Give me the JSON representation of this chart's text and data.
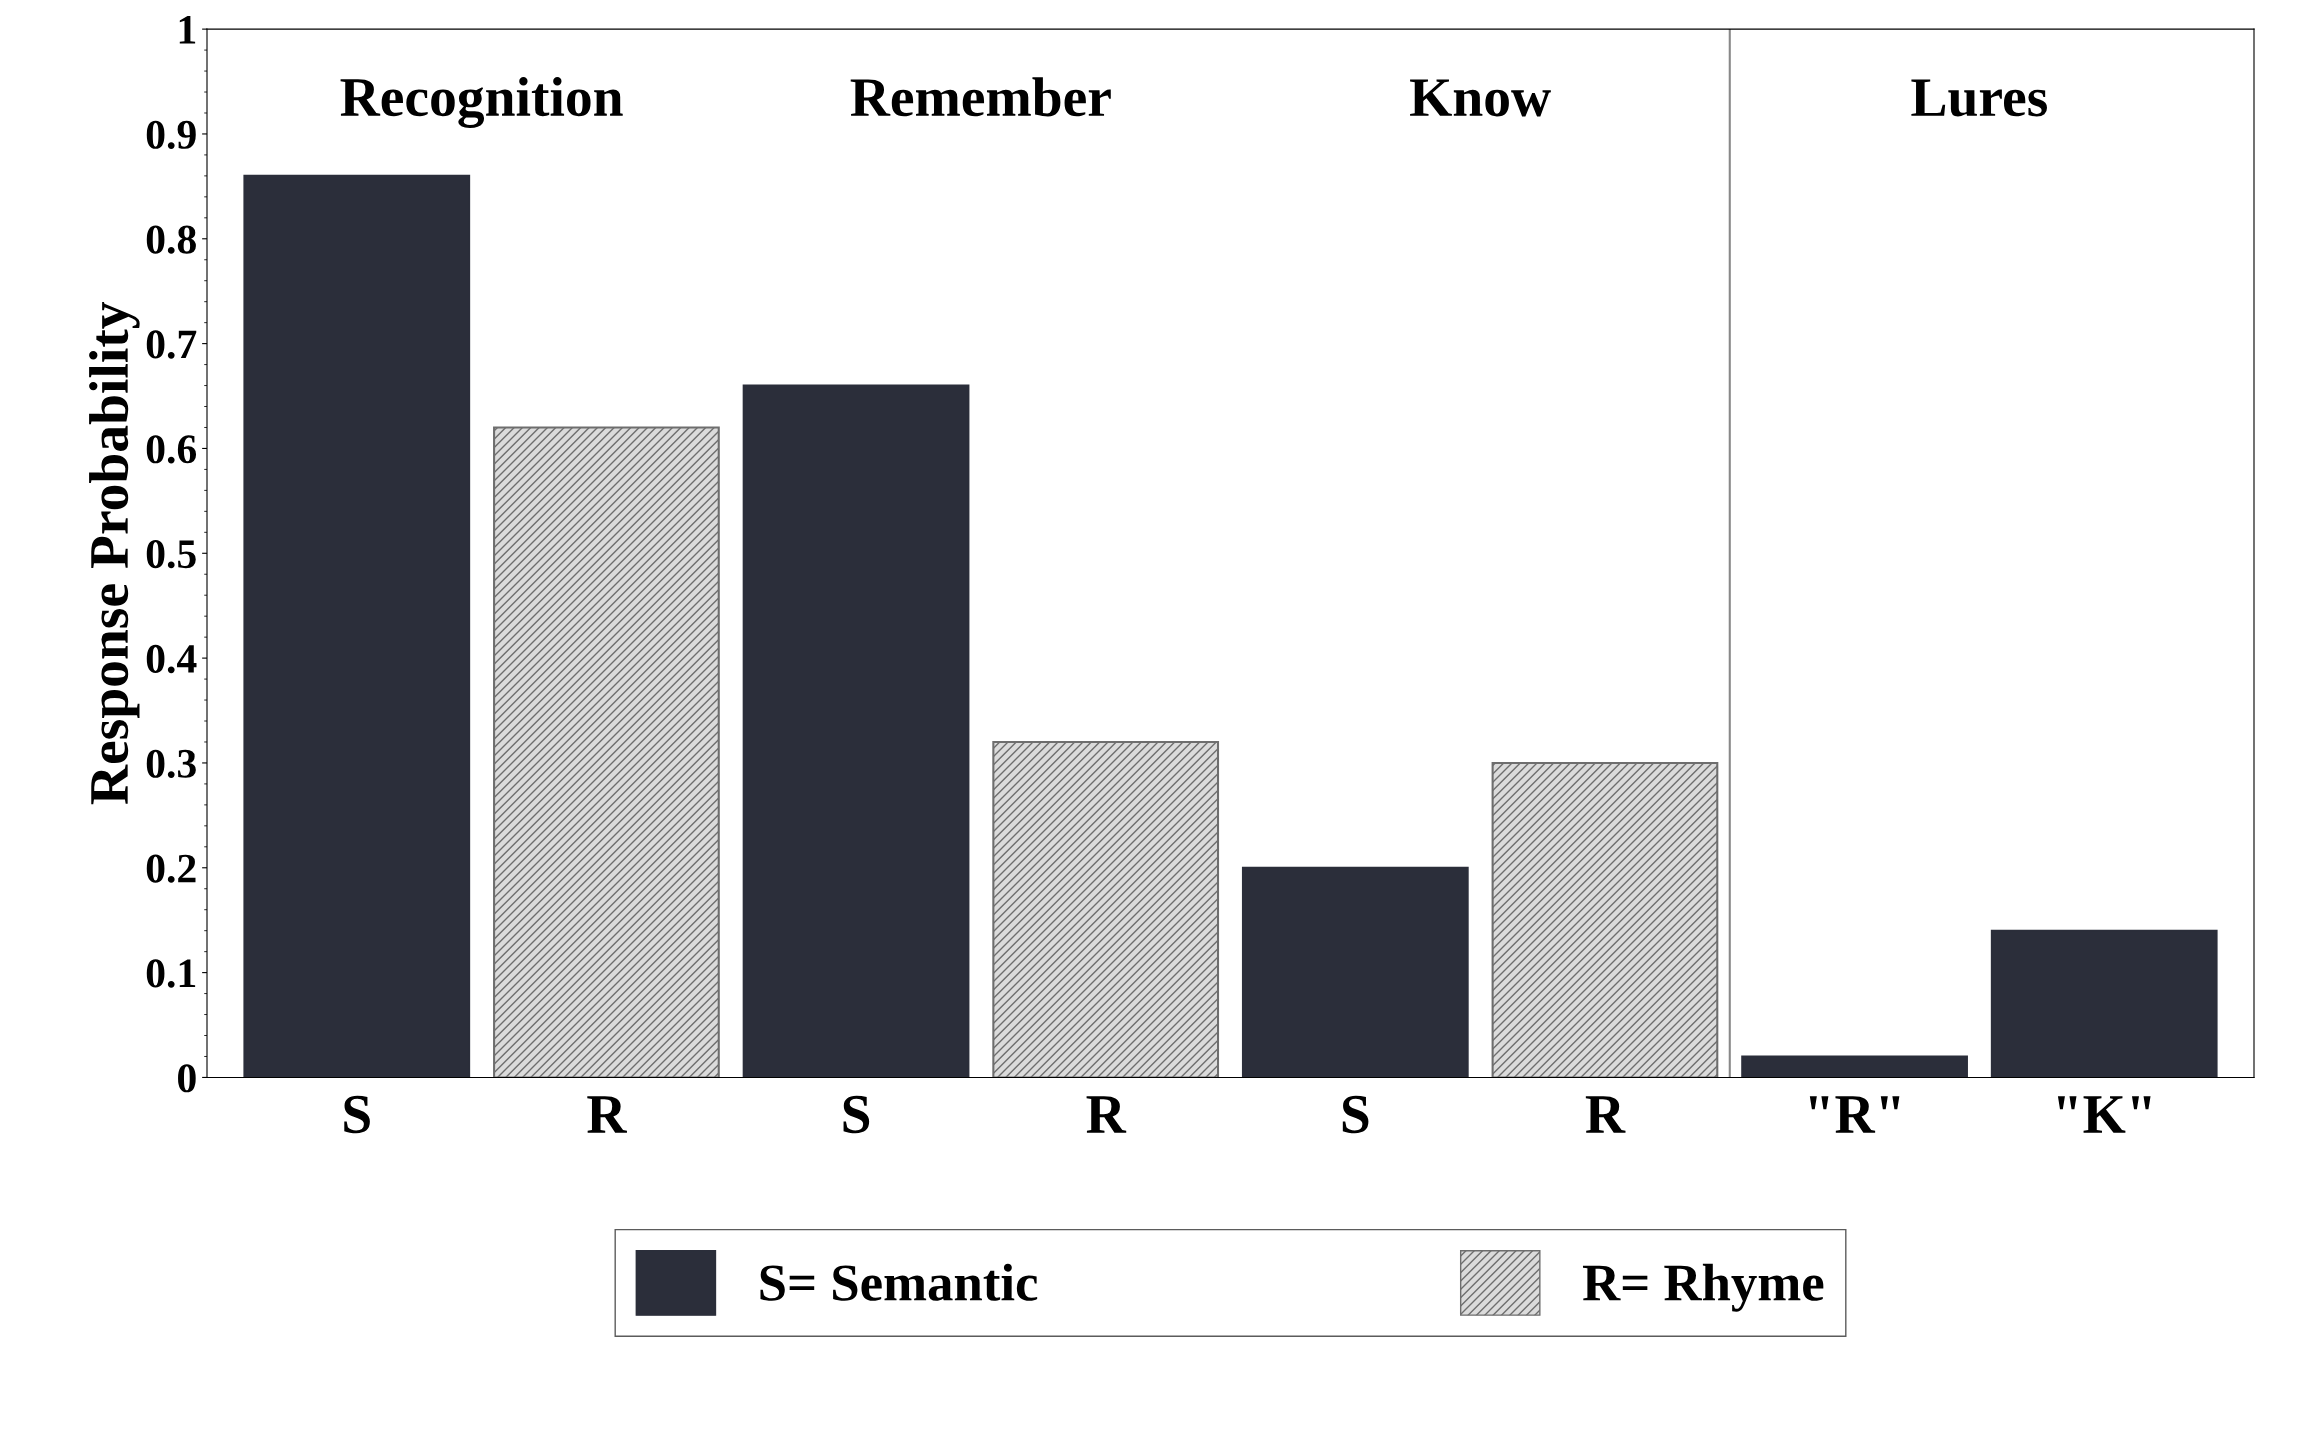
{
  "chart_data": {
    "type": "bar",
    "ylabel": "Response Probability",
    "categories": [
      "S",
      "R",
      "S",
      "R",
      "S",
      "R",
      "\"R\"",
      "\"K\""
    ],
    "series": [
      {
        "name": "S= Semantic",
        "color": "#2b2e3a",
        "values": [
          0.86,
          null,
          0.66,
          null,
          0.2,
          null,
          0.02,
          0.14
        ]
      },
      {
        "name": "R= Rhyme",
        "color": "#6e6e6e",
        "values": [
          null,
          0.62,
          null,
          0.32,
          null,
          0.3,
          null,
          null
        ]
      }
    ],
    "ylim": [
      0,
      1
    ],
    "yticks": [
      0,
      0.1,
      0.2,
      0.3,
      0.4,
      0.5,
      0.6,
      0.7,
      0.8,
      0.9,
      1
    ],
    "annotations": [
      "Recognition",
      "Remember",
      "Know",
      "Lures"
    ],
    "grid": false,
    "legend": "bottom"
  }
}
